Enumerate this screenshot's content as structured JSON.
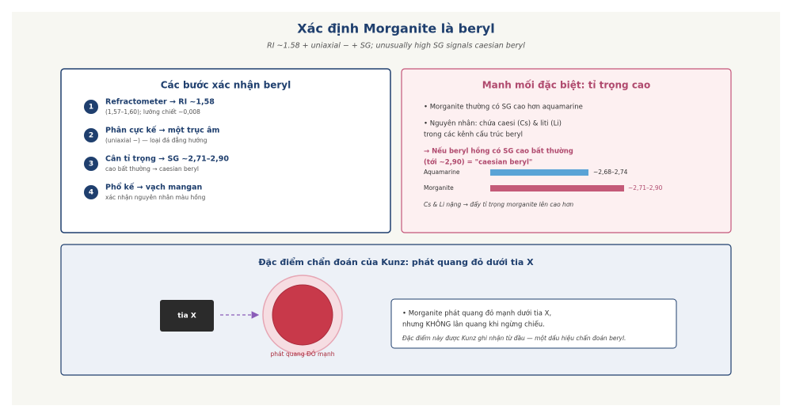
{
  "header": {
    "title": "Xác định Morganite là beryl",
    "subtitle": "RI ~1.58 + uniaxial − + SG; unusually high SG signals caesian beryl"
  },
  "steps_panel": {
    "title": "Các bước xác nhận beryl",
    "steps": [
      {
        "number": "1",
        "title": "Refractometer → RI ~1,58",
        "detail": "(1,57–1,60); lưỡng chiết ~0,008"
      },
      {
        "number": "2",
        "title": "Phân cực kế → một trục âm",
        "detail": "(uniaxial −) — loại đá đẳng hướng"
      },
      {
        "number": "3",
        "title": "Cân tỉ trọng → SG ~2,71–2,90",
        "detail": "cao bất thường → caesian beryl"
      },
      {
        "number": "4",
        "title": "Phổ kế → vạch mangan",
        "detail": "xác nhận nguyên nhân màu hồng"
      }
    ]
  },
  "clue_panel": {
    "title": "Manh mối đặc biệt: tỉ trọng cao",
    "bullets": [
      "• Morganite thường có SG cao hơn aquamarine",
      "• Nguyên nhân: chứa caesi (Cs) & liti (Li)",
      "trong các kênh cấu trúc beryl"
    ],
    "highlight": [
      "→ Nếu beryl hồng có SG cao bất thường",
      "(tới ~2,90) = \"caesian beryl\""
    ],
    "comparison": [
      {
        "name": "Aquamarine",
        "value_label": "~2,68–2,74"
      },
      {
        "name": "Morganite",
        "value_label": "~2,71–2,90"
      }
    ],
    "note": "Cs & Li nặng → đẩy tỉ trọng morganite lên cao hơn"
  },
  "kunz_panel": {
    "title": "Đặc điểm chẩn đoán của Kunz: phát quang đỏ dưới tia X",
    "source_label": "tia X",
    "effect_label": "phát quang ĐỎ mạnh",
    "description": [
      "• Morganite phát quang đỏ mạnh dưới tia X,",
      "nhưng KHÔNG lân quang khi ngừng chiếu."
    ],
    "note": "Đặc điểm này được Kunz ghi nhận từ đầu — một dấu hiệu chẩn đoán beryl."
  }
}
